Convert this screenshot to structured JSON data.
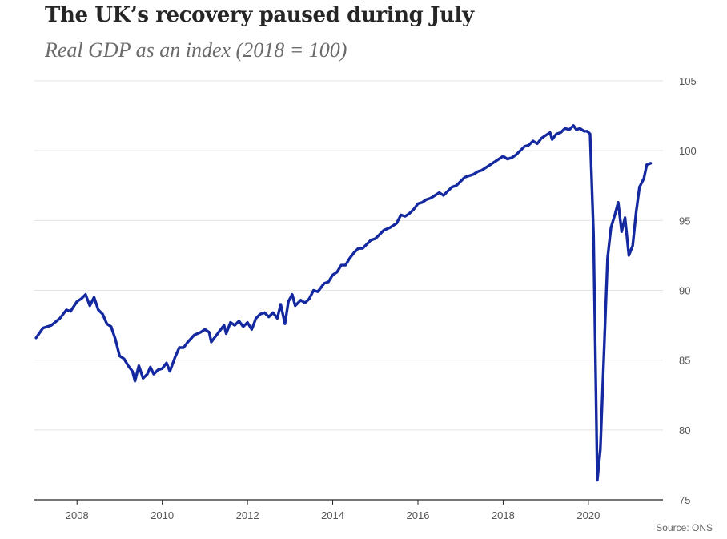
{
  "chart_data": {
    "type": "line",
    "title": "The UK’s recovery paused during July",
    "subtitle": "Real GDP as an index (2018 = 100)",
    "source": "Source: ONS",
    "xlabel": "",
    "ylabel": "",
    "xlim": [
      2007.0,
      2021.75
    ],
    "ylim": [
      75,
      105
    ],
    "xticks": [
      2008,
      2010,
      2012,
      2014,
      2016,
      2018,
      2020
    ],
    "yticks": [
      75,
      80,
      85,
      90,
      95,
      100,
      105
    ],
    "grid": true,
    "colors": {
      "line": "#1428a0",
      "grid": "#e3e3e3",
      "axis": "#222222"
    },
    "series": [
      {
        "points": [
          [
            2007.04,
            86.6
          ],
          [
            2007.2,
            87.3
          ],
          [
            2007.4,
            87.5
          ],
          [
            2007.6,
            88.0
          ],
          [
            2007.75,
            88.6
          ],
          [
            2007.85,
            88.5
          ],
          [
            2008.0,
            89.2
          ],
          [
            2008.1,
            89.4
          ],
          [
            2008.2,
            89.7
          ],
          [
            2008.3,
            88.9
          ],
          [
            2008.4,
            89.5
          ],
          [
            2008.5,
            88.6
          ],
          [
            2008.6,
            88.3
          ],
          [
            2008.7,
            87.6
          ],
          [
            2008.8,
            87.4
          ],
          [
            2008.9,
            86.5
          ],
          [
            2009.0,
            85.3
          ],
          [
            2009.1,
            85.1
          ],
          [
            2009.2,
            84.6
          ],
          [
            2009.3,
            84.2
          ],
          [
            2009.36,
            83.5
          ],
          [
            2009.45,
            84.6
          ],
          [
            2009.55,
            83.7
          ],
          [
            2009.65,
            84.0
          ],
          [
            2009.72,
            84.5
          ],
          [
            2009.8,
            84.0
          ],
          [
            2009.9,
            84.3
          ],
          [
            2010.0,
            84.4
          ],
          [
            2010.1,
            84.8
          ],
          [
            2010.18,
            84.2
          ],
          [
            2010.3,
            85.2
          ],
          [
            2010.4,
            85.9
          ],
          [
            2010.5,
            85.9
          ],
          [
            2010.6,
            86.3
          ],
          [
            2010.75,
            86.8
          ],
          [
            2010.9,
            87.0
          ],
          [
            2011.0,
            87.2
          ],
          [
            2011.1,
            87.0
          ],
          [
            2011.15,
            86.3
          ],
          [
            2011.3,
            86.9
          ],
          [
            2011.45,
            87.5
          ],
          [
            2011.5,
            86.9
          ],
          [
            2011.6,
            87.7
          ],
          [
            2011.7,
            87.5
          ],
          [
            2011.8,
            87.8
          ],
          [
            2011.9,
            87.4
          ],
          [
            2012.0,
            87.7
          ],
          [
            2012.1,
            87.2
          ],
          [
            2012.2,
            88.0
          ],
          [
            2012.3,
            88.3
          ],
          [
            2012.4,
            88.4
          ],
          [
            2012.5,
            88.1
          ],
          [
            2012.6,
            88.4
          ],
          [
            2012.7,
            88.0
          ],
          [
            2012.78,
            89.0
          ],
          [
            2012.88,
            87.6
          ],
          [
            2012.96,
            89.2
          ],
          [
            2013.05,
            89.7
          ],
          [
            2013.12,
            88.9
          ],
          [
            2013.25,
            89.3
          ],
          [
            2013.35,
            89.1
          ],
          [
            2013.45,
            89.4
          ],
          [
            2013.55,
            90.0
          ],
          [
            2013.65,
            89.9
          ],
          [
            2013.8,
            90.5
          ],
          [
            2013.9,
            90.6
          ],
          [
            2014.0,
            91.1
          ],
          [
            2014.1,
            91.3
          ],
          [
            2014.2,
            91.8
          ],
          [
            2014.3,
            91.8
          ],
          [
            2014.4,
            92.3
          ],
          [
            2014.5,
            92.7
          ],
          [
            2014.6,
            93.0
          ],
          [
            2014.7,
            93.0
          ],
          [
            2014.8,
            93.3
          ],
          [
            2014.9,
            93.6
          ],
          [
            2015.0,
            93.7
          ],
          [
            2015.1,
            94.0
          ],
          [
            2015.2,
            94.3
          ],
          [
            2015.35,
            94.5
          ],
          [
            2015.5,
            94.8
          ],
          [
            2015.6,
            95.4
          ],
          [
            2015.7,
            95.3
          ],
          [
            2015.8,
            95.5
          ],
          [
            2015.9,
            95.8
          ],
          [
            2016.0,
            96.2
          ],
          [
            2016.1,
            96.3
          ],
          [
            2016.2,
            96.5
          ],
          [
            2016.3,
            96.6
          ],
          [
            2016.4,
            96.8
          ],
          [
            2016.5,
            97.0
          ],
          [
            2016.6,
            96.8
          ],
          [
            2016.7,
            97.1
          ],
          [
            2016.8,
            97.4
          ],
          [
            2016.9,
            97.5
          ],
          [
            2017.0,
            97.8
          ],
          [
            2017.1,
            98.1
          ],
          [
            2017.2,
            98.2
          ],
          [
            2017.3,
            98.3
          ],
          [
            2017.4,
            98.5
          ],
          [
            2017.5,
            98.6
          ],
          [
            2017.6,
            98.8
          ],
          [
            2017.7,
            99.0
          ],
          [
            2017.8,
            99.2
          ],
          [
            2017.9,
            99.4
          ],
          [
            2018.0,
            99.6
          ],
          [
            2018.1,
            99.4
          ],
          [
            2018.2,
            99.5
          ],
          [
            2018.3,
            99.7
          ],
          [
            2018.4,
            100.0
          ],
          [
            2018.5,
            100.3
          ],
          [
            2018.6,
            100.4
          ],
          [
            2018.7,
            100.7
          ],
          [
            2018.8,
            100.5
          ],
          [
            2018.9,
            100.9
          ],
          [
            2019.0,
            101.1
          ],
          [
            2019.1,
            101.3
          ],
          [
            2019.15,
            100.8
          ],
          [
            2019.25,
            101.2
          ],
          [
            2019.35,
            101.3
          ],
          [
            2019.45,
            101.6
          ],
          [
            2019.55,
            101.5
          ],
          [
            2019.65,
            101.8
          ],
          [
            2019.72,
            101.5
          ],
          [
            2019.8,
            101.6
          ],
          [
            2019.9,
            101.4
          ],
          [
            2019.97,
            101.4
          ],
          [
            2020.04,
            101.2
          ],
          [
            2020.12,
            94.0
          ],
          [
            2020.21,
            76.4
          ],
          [
            2020.28,
            78.6
          ],
          [
            2020.36,
            85.0
          ],
          [
            2020.45,
            92.3
          ],
          [
            2020.53,
            94.5
          ],
          [
            2020.62,
            95.4
          ],
          [
            2020.7,
            96.3
          ],
          [
            2020.78,
            94.2
          ],
          [
            2020.86,
            95.2
          ],
          [
            2020.95,
            92.5
          ],
          [
            2021.04,
            93.2
          ],
          [
            2021.12,
            95.6
          ],
          [
            2021.2,
            97.4
          ],
          [
            2021.3,
            98.0
          ],
          [
            2021.37,
            99.0
          ],
          [
            2021.46,
            99.1
          ]
        ]
      }
    ]
  }
}
